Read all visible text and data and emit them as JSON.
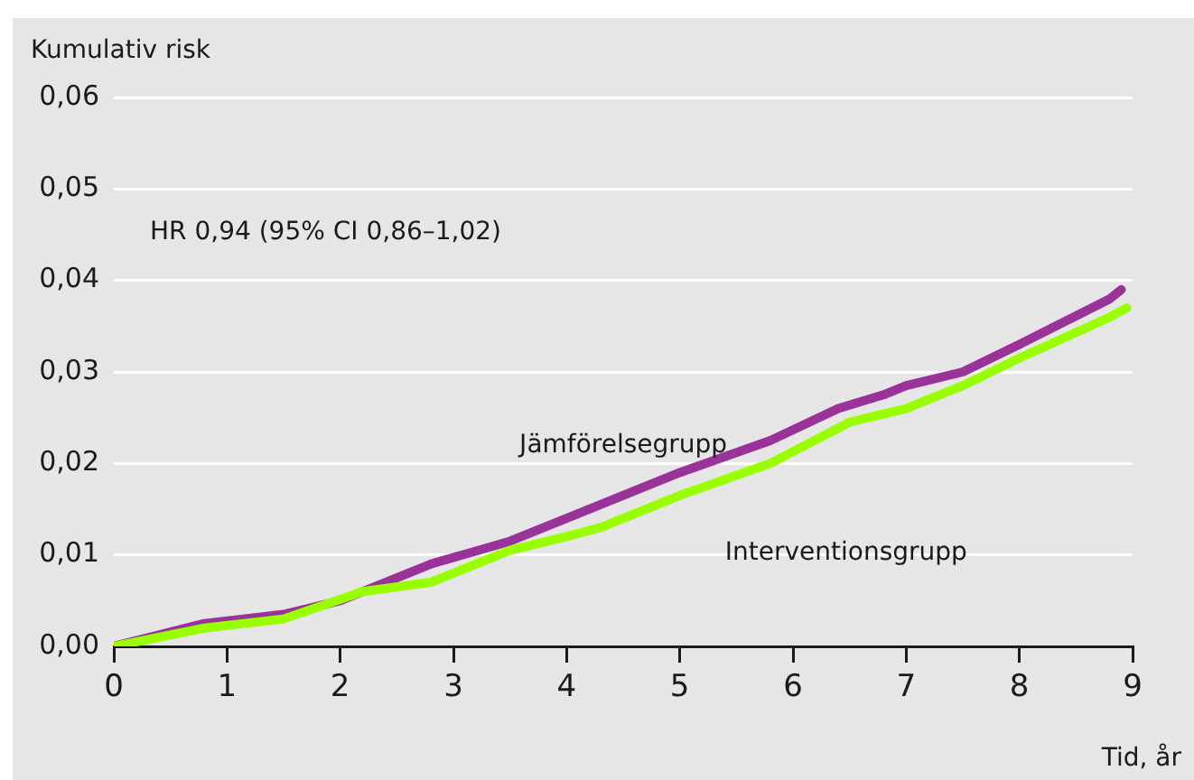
{
  "chart_data": {
    "type": "line",
    "xlabel": "Tid, år",
    "ylabel": "Kumulativ risk",
    "annotations": [
      "HR 0,94 (95% CI 0,86–1,02)"
    ],
    "xlim": [
      0,
      9
    ],
    "xticks": [
      0,
      1,
      2,
      3,
      4,
      5,
      6,
      7,
      8,
      9
    ],
    "ylim": [
      0,
      0.06
    ],
    "yticks": [
      {
        "value": 0,
        "label": "0,00"
      },
      {
        "value": 0.01,
        "label": "0,01"
      },
      {
        "value": 0.02,
        "label": "0,02"
      },
      {
        "value": 0.03,
        "label": "0,03"
      },
      {
        "value": 0.04,
        "label": "0,04"
      },
      {
        "value": 0.05,
        "label": "0,05"
      },
      {
        "value": 0.06,
        "label": "0,06"
      }
    ],
    "grid": "y",
    "legend": false,
    "marker": "none",
    "line_style": "solid",
    "series": [
      {
        "name": "Jämförelsegrupp",
        "color": "#993399",
        "x": [
          0,
          0.8,
          1.5,
          2,
          2.8,
          3.5,
          4,
          5,
          5.8,
          6.4,
          6.8,
          7,
          7.5,
          8,
          8.8,
          8.9
        ],
        "values": [
          0,
          0.0025,
          0.0035,
          0.005,
          0.009,
          0.0115,
          0.014,
          0.019,
          0.0225,
          0.026,
          0.0275,
          0.0285,
          0.03,
          0.033,
          0.038,
          0.039
        ]
      },
      {
        "name": "Interventionsgrupp",
        "color": "#99ff00",
        "x": [
          0,
          0.8,
          1.5,
          2.2,
          2.8,
          3.5,
          4,
          4.3,
          5,
          5.8,
          6.5,
          7,
          7.5,
          8,
          8.8,
          8.95
        ],
        "values": [
          0,
          0.002,
          0.003,
          0.006,
          0.007,
          0.0105,
          0.012,
          0.013,
          0.0165,
          0.02,
          0.0245,
          0.026,
          0.0285,
          0.0315,
          0.036,
          0.037
        ]
      }
    ]
  }
}
